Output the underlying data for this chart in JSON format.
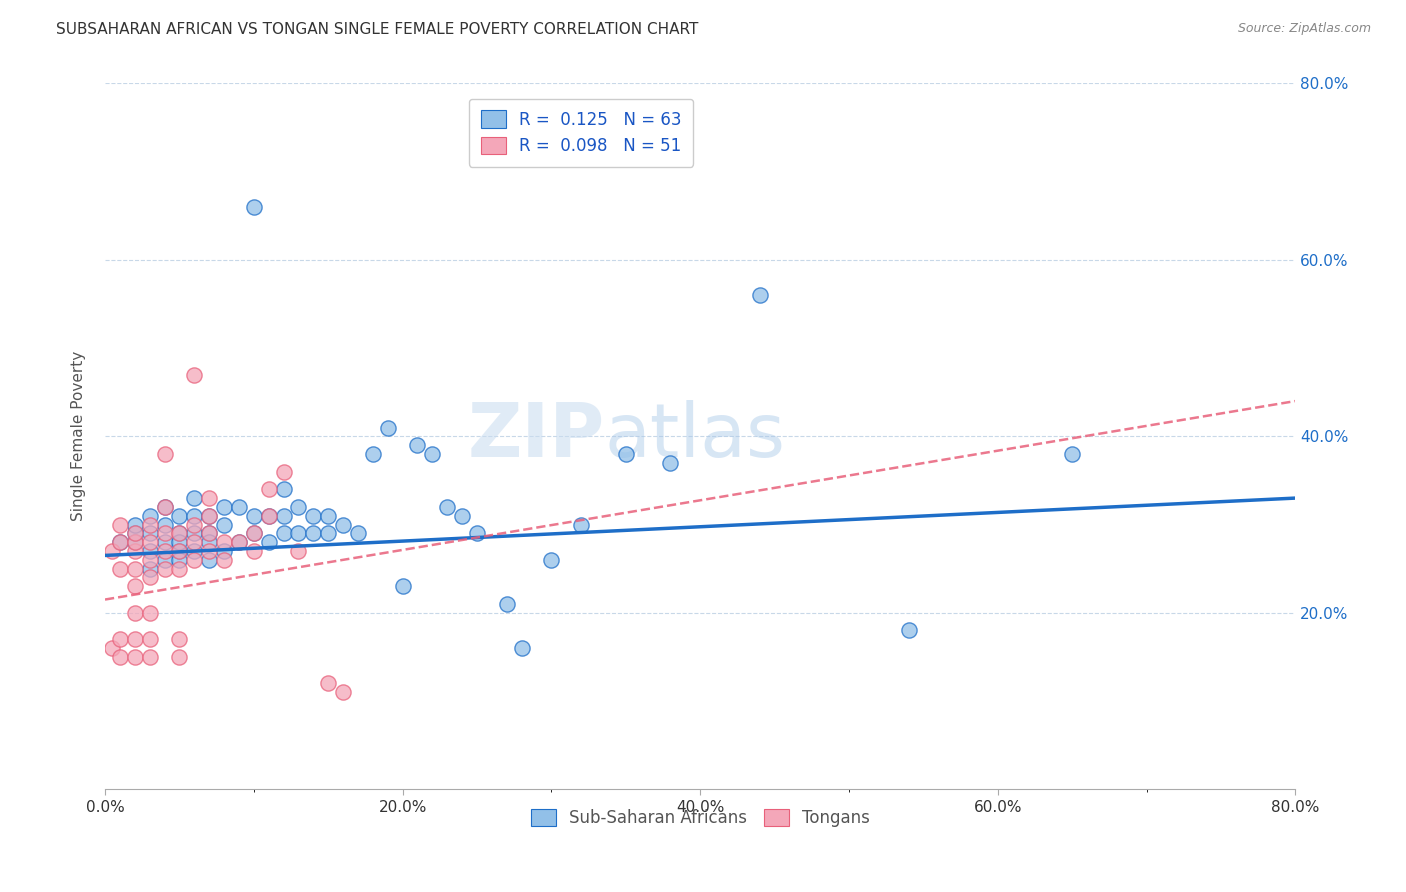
{
  "title": "SUBSAHARAN AFRICAN VS TONGAN SINGLE FEMALE POVERTY CORRELATION CHART",
  "source": "Source: ZipAtlas.com",
  "ylabel": "Single Female Poverty",
  "xlim": [
    0.0,
    0.8
  ],
  "ylim": [
    0.0,
    0.8
  ],
  "xtick_labels": [
    "0.0%",
    "",
    "",
    "",
    "",
    "20.0%",
    "",
    "",
    "",
    "",
    "40.0%",
    "",
    "",
    "",
    "",
    "60.0%",
    "",
    "",
    "",
    "",
    "80.0%"
  ],
  "xtick_vals": [
    0.0,
    0.04,
    0.08,
    0.12,
    0.16,
    0.2,
    0.24,
    0.28,
    0.32,
    0.36,
    0.4,
    0.44,
    0.48,
    0.52,
    0.56,
    0.6,
    0.64,
    0.68,
    0.72,
    0.76,
    0.8
  ],
  "xtick_major_labels": [
    "0.0%",
    "20.0%",
    "40.0%",
    "60.0%",
    "80.0%"
  ],
  "xtick_major_vals": [
    0.0,
    0.2,
    0.4,
    0.6,
    0.8
  ],
  "ytick_labels": [
    "20.0%",
    "40.0%",
    "60.0%",
    "80.0%"
  ],
  "ytick_vals": [
    0.2,
    0.4,
    0.6,
    0.8
  ],
  "blue_R": 0.125,
  "blue_N": 63,
  "pink_R": 0.098,
  "pink_N": 51,
  "blue_color": "#92C0E8",
  "pink_color": "#F4A7B9",
  "blue_line_color": "#1E6EC8",
  "pink_line_color": "#E8607A",
  "legend_text_color": "#1A56C4",
  "watermark_zip": "ZIP",
  "watermark_atlas": "atlas",
  "blue_scatter_x": [
    0.01,
    0.02,
    0.02,
    0.02,
    0.03,
    0.03,
    0.03,
    0.03,
    0.04,
    0.04,
    0.04,
    0.04,
    0.05,
    0.05,
    0.05,
    0.05,
    0.05,
    0.06,
    0.06,
    0.06,
    0.06,
    0.07,
    0.07,
    0.07,
    0.07,
    0.08,
    0.08,
    0.08,
    0.09,
    0.09,
    0.1,
    0.1,
    0.1,
    0.11,
    0.11,
    0.12,
    0.12,
    0.12,
    0.13,
    0.13,
    0.14,
    0.14,
    0.15,
    0.15,
    0.16,
    0.17,
    0.18,
    0.19,
    0.2,
    0.21,
    0.22,
    0.23,
    0.24,
    0.25,
    0.27,
    0.28,
    0.3,
    0.32,
    0.35,
    0.38,
    0.44,
    0.54,
    0.65
  ],
  "blue_scatter_y": [
    0.28,
    0.29,
    0.3,
    0.28,
    0.27,
    0.29,
    0.31,
    0.25,
    0.28,
    0.3,
    0.32,
    0.26,
    0.27,
    0.29,
    0.31,
    0.26,
    0.28,
    0.27,
    0.29,
    0.31,
    0.33,
    0.26,
    0.29,
    0.31,
    0.28,
    0.27,
    0.3,
    0.32,
    0.28,
    0.32,
    0.29,
    0.31,
    0.66,
    0.28,
    0.31,
    0.29,
    0.31,
    0.34,
    0.29,
    0.32,
    0.29,
    0.31,
    0.29,
    0.31,
    0.3,
    0.29,
    0.38,
    0.41,
    0.23,
    0.39,
    0.38,
    0.32,
    0.31,
    0.29,
    0.21,
    0.16,
    0.26,
    0.3,
    0.38,
    0.37,
    0.56,
    0.18,
    0.38
  ],
  "pink_scatter_x": [
    0.005,
    0.005,
    0.01,
    0.01,
    0.01,
    0.01,
    0.01,
    0.02,
    0.02,
    0.02,
    0.02,
    0.02,
    0.02,
    0.02,
    0.02,
    0.03,
    0.03,
    0.03,
    0.03,
    0.03,
    0.03,
    0.03,
    0.04,
    0.04,
    0.04,
    0.04,
    0.04,
    0.05,
    0.05,
    0.05,
    0.05,
    0.05,
    0.06,
    0.06,
    0.06,
    0.06,
    0.07,
    0.07,
    0.07,
    0.07,
    0.08,
    0.08,
    0.09,
    0.1,
    0.1,
    0.11,
    0.11,
    0.12,
    0.13,
    0.15,
    0.16
  ],
  "pink_scatter_y": [
    0.27,
    0.16,
    0.28,
    0.3,
    0.25,
    0.15,
    0.17,
    0.23,
    0.25,
    0.27,
    0.28,
    0.29,
    0.15,
    0.17,
    0.2,
    0.24,
    0.26,
    0.28,
    0.3,
    0.15,
    0.17,
    0.2,
    0.25,
    0.27,
    0.29,
    0.32,
    0.38,
    0.25,
    0.27,
    0.29,
    0.15,
    0.17,
    0.26,
    0.28,
    0.3,
    0.47,
    0.27,
    0.29,
    0.31,
    0.33,
    0.26,
    0.28,
    0.28,
    0.27,
    0.29,
    0.31,
    0.34,
    0.36,
    0.27,
    0.12,
    0.11
  ]
}
